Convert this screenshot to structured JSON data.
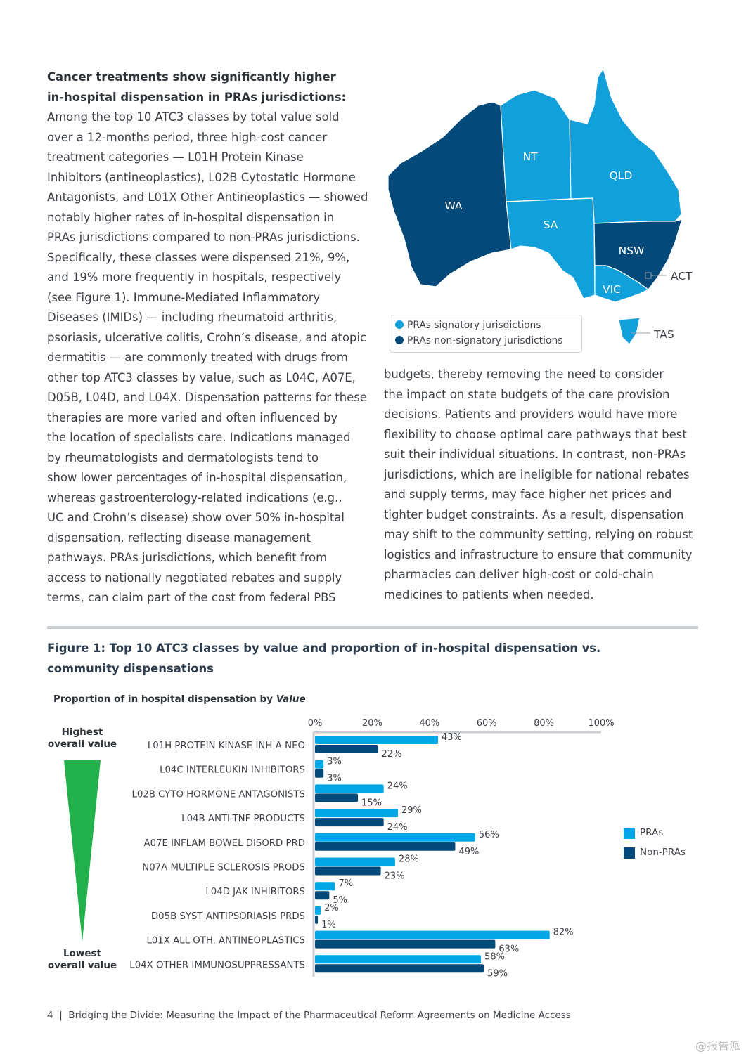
{
  "left_text": {
    "heading_lines": [
      "Cancer treatments show significantly higher",
      "in-hospital dispensation in PRAs jurisdictions:"
    ],
    "body_lines": [
      "Among the top 10 ATC3 classes by total value sold",
      "over a 12-months period, three high-cost cancer",
      "treatment categories — L01H Protein Kinase",
      "Inhibitors (antineoplastics), L02B Cytostatic Hormone",
      "Antagonists, and L01X Other Antineoplastics — showed",
      "notably higher rates of in-hospital dispensation in",
      "PRAs jurisdictions compared to non-PRAs jurisdictions.",
      "Specifically, these classes were dispensed 21%, 9%,",
      "and 19% more frequently in hospitals, respectively",
      "(see Figure 1). Immune-Mediated Inflammatory",
      "Diseases (IMIDs) — including rheumatoid arthritis,",
      "psoriasis, ulcerative colitis, Crohn’s disease, and atopic",
      "dermatitis — are commonly treated with drugs from",
      "other top ATC3 classes by value, such as L04C, A07E,",
      "D05B, L04D, and L04X. Dispensation patterns for these",
      "therapies are more varied and often influenced by",
      "the location of specialists care. Indications managed",
      "by rheumatologists and dermatologists tend to",
      "show lower percentages of in-hospital dispensation,",
      "whereas gastroenterology-related indications (e.g.,",
      "UC and Crohn’s disease) show over 50% in-hospital",
      "dispensation, reflecting disease management",
      "pathways. PRAs jurisdictions, which benefit from",
      "access to nationally negotiated rebates and supply",
      "terms, can claim part of the cost from federal PBS"
    ]
  },
  "right_text": {
    "body_lines": [
      "budgets, thereby removing the need to consider",
      "the impact on state budgets of the care provision",
      "decisions. Patients and providers would have more",
      "flexibility to choose optimal care pathways that best",
      "suit their individual situations. In contrast, non-PRAs",
      "jurisdictions, which are ineligible for national rebates",
      "and supply terms, may face higher net prices and",
      "tighter budget constraints. As a result, dispensation",
      "may shift to the community setting, relying on robust",
      "logistics and infrastructure to ensure that community",
      "pharmacies can deliver high-cost or cold-chain",
      "medicines to patients when needed."
    ]
  },
  "map": {
    "states": {
      "WA": "WA",
      "NT": "NT",
      "QLD": "QLD",
      "SA": "SA",
      "NSW": "NSW",
      "VIC": "VIC",
      "ACT": "ACT",
      "TAS": "TAS"
    },
    "legend": {
      "signatory": "PRAs signatory jurisdictions",
      "non_signatory": "PRAs non-signatory jurisdictions"
    },
    "colors": {
      "signatory": "#12a0db",
      "non_signatory": "#034a7a"
    }
  },
  "figure": {
    "title_lines": [
      "Figure 1: Top 10 ATC3 classes by value and proportion of in-hospital dispensation vs.",
      "community dispensations"
    ],
    "subtitle": "Proportion of in hospital dispensation by ",
    "subtitle_italic": "Value",
    "highest_label": [
      "Highest",
      "overall value"
    ],
    "lowest_label": [
      "Lowest",
      "overall value"
    ]
  },
  "chart_data": {
    "type": "bar",
    "orientation": "horizontal",
    "title": "Proportion of in hospital dispensation by Value",
    "xlim": [
      0,
      100
    ],
    "x_ticks": [
      "0%",
      "20%",
      "40%",
      "60%",
      "80%",
      "100%"
    ],
    "categories": [
      "L01H PROTEIN KINASE INH A-NEO",
      "L04C INTERLEUKIN INHIBITORS",
      "L02B CYTO HORMONE ANTAGONISTS",
      "L04B ANTI-TNF PRODUCTS",
      "A07E INFLAM BOWEL DISORD PRD",
      "N07A MULTIPLE SCLEROSIS PRODS",
      "L04D JAK INHIBITORS",
      "D05B SYST ANTIPSORIASIS PRDS",
      "L01X ALL OTH. ANTINEOPLASTICS",
      "L04X OTHER IMMUNOSUPPRESSANTS"
    ],
    "series": [
      {
        "name": "PRAs",
        "color": "#00a7e6",
        "values": [
          43,
          3,
          24,
          29,
          56,
          28,
          7,
          2,
          82,
          58
        ]
      },
      {
        "name": "Non-PRAs",
        "color": "#03497a",
        "values": [
          22,
          3,
          15,
          24,
          49,
          23,
          5,
          1,
          63,
          59
        ]
      }
    ],
    "legend_position": "right"
  },
  "footer": {
    "page": "4",
    "separator": "|",
    "title": "Bridging the Divide: Measuring the Impact of the Pharmaceutical Reform Agreements on Medicine Access"
  },
  "watermark": "@报告派"
}
